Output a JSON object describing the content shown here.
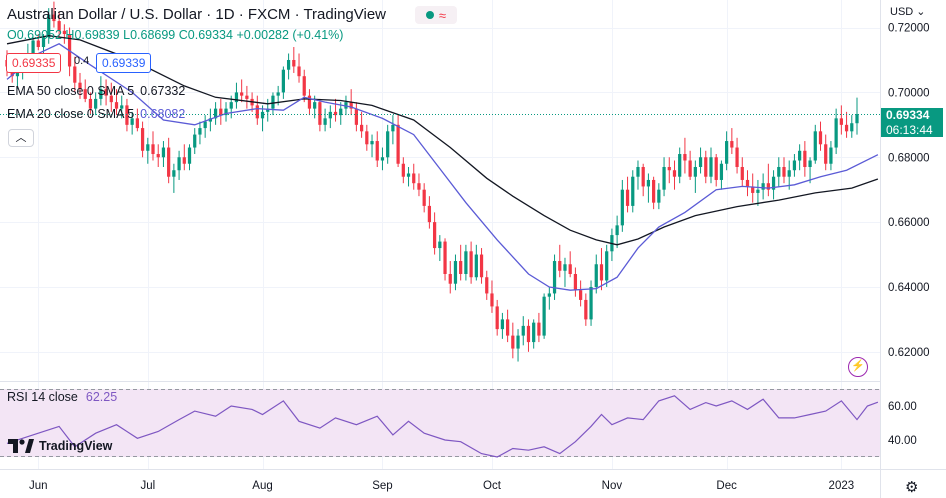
{
  "header": {
    "title": "Australian Dollar / U.S. Dollar · 1D · FXCM · TradingView",
    "ohlc": {
      "open_label": "O",
      "open": "0.69052",
      "high_label": "H",
      "high": "0.69839",
      "low_label": "L",
      "low": "0.68699",
      "close_label": "C",
      "close": "0.69334",
      "change": "+0.00282 (+0.41%)"
    },
    "sell_price": "0.69335",
    "spread": "0.4",
    "buy_price": "0.69339",
    "currency": "USD",
    "collapse_icon": "chevron-up-icon"
  },
  "indicators": [
    {
      "label": "EMA 50 close 0 SMA 5",
      "value": "0.67332",
      "color": "#131722"
    },
    {
      "label": "EMA 20 close 0 SMA 5",
      "value": "0.68082",
      "color": "#5b5bd6"
    }
  ],
  "price_scale": {
    "labels": [
      "0.72000",
      "0.70000",
      "0.68000",
      "0.66000",
      "0.64000",
      "0.62000"
    ],
    "last_price": "0.69334",
    "countdown": "06:13:44"
  },
  "rsi": {
    "label": "RSI 14 close",
    "value": "62.25",
    "labels": [
      "60.00",
      "40.00"
    ]
  },
  "time_axis": [
    "Jun",
    "Jul",
    "Aug",
    "Sep",
    "Oct",
    "Nov",
    "Dec",
    "2023"
  ],
  "brand": {
    "name": "TradingView"
  },
  "colors": {
    "up": "#089981",
    "down": "#f23645",
    "ema50": "#131722",
    "ema20": "#5b5bd6",
    "rsi": "#7e57c2",
    "rsi_band": "#f3e5f5"
  },
  "chart_data": {
    "type": "candlestick",
    "title": "Australian Dollar / U.S. Dollar · 1D · FXCM",
    "y_range": [
      0.611,
      0.7285
    ],
    "x_ticks": [
      {
        "label": "Jun",
        "index": 6
      },
      {
        "label": "Jul",
        "index": 27
      },
      {
        "label": "Aug",
        "index": 49
      },
      {
        "label": "Sep",
        "index": 72
      },
      {
        "label": "Oct",
        "index": 93
      },
      {
        "label": "Nov",
        "index": 116
      },
      {
        "label": "Dec",
        "index": 138
      },
      {
        "label": "2023",
        "index": 160
      }
    ],
    "candles": [
      [
        0.71,
        0.713,
        0.705,
        0.708
      ],
      [
        0.708,
        0.711,
        0.703,
        0.705
      ],
      [
        0.705,
        0.709,
        0.701,
        0.706
      ],
      [
        0.706,
        0.712,
        0.704,
        0.71
      ],
      [
        0.71,
        0.715,
        0.707,
        0.712
      ],
      [
        0.712,
        0.717,
        0.71,
        0.716
      ],
      [
        0.716,
        0.718,
        0.713,
        0.714
      ],
      [
        0.714,
        0.718,
        0.71,
        0.717
      ],
      [
        0.717,
        0.726,
        0.715,
        0.724
      ],
      [
        0.724,
        0.728,
        0.72,
        0.722
      ],
      [
        0.722,
        0.725,
        0.717,
        0.719
      ],
      [
        0.719,
        0.721,
        0.715,
        0.718
      ],
      [
        0.718,
        0.72,
        0.705,
        0.708
      ],
      [
        0.708,
        0.711,
        0.7,
        0.703
      ],
      [
        0.703,
        0.706,
        0.698,
        0.701
      ],
      [
        0.701,
        0.704,
        0.697,
        0.698
      ],
      [
        0.698,
        0.7,
        0.693,
        0.695
      ],
      [
        0.695,
        0.7,
        0.693,
        0.698
      ],
      [
        0.698,
        0.705,
        0.696,
        0.701
      ],
      [
        0.701,
        0.704,
        0.696,
        0.699
      ],
      [
        0.699,
        0.703,
        0.694,
        0.697
      ],
      [
        0.697,
        0.701,
        0.693,
        0.695
      ],
      [
        0.695,
        0.699,
        0.692,
        0.696
      ],
      [
        0.696,
        0.698,
        0.688,
        0.69
      ],
      [
        0.69,
        0.694,
        0.687,
        0.692
      ],
      [
        0.692,
        0.695,
        0.688,
        0.689
      ],
      [
        0.689,
        0.691,
        0.68,
        0.682
      ],
      [
        0.682,
        0.686,
        0.678,
        0.684
      ],
      [
        0.684,
        0.688,
        0.679,
        0.681
      ],
      [
        0.681,
        0.684,
        0.677,
        0.68
      ],
      [
        0.68,
        0.685,
        0.677,
        0.683
      ],
      [
        0.683,
        0.686,
        0.672,
        0.674
      ],
      [
        0.674,
        0.678,
        0.669,
        0.676
      ],
      [
        0.676,
        0.682,
        0.673,
        0.68
      ],
      [
        0.68,
        0.684,
        0.676,
        0.678
      ],
      [
        0.678,
        0.684,
        0.676,
        0.683
      ],
      [
        0.683,
        0.689,
        0.681,
        0.687
      ],
      [
        0.687,
        0.691,
        0.684,
        0.689
      ],
      [
        0.689,
        0.693,
        0.686,
        0.691
      ],
      [
        0.691,
        0.695,
        0.688,
        0.692
      ],
      [
        0.692,
        0.697,
        0.69,
        0.695
      ],
      [
        0.695,
        0.698,
        0.69,
        0.693
      ],
      [
        0.693,
        0.697,
        0.691,
        0.695
      ],
      [
        0.695,
        0.699,
        0.692,
        0.697
      ],
      [
        0.697,
        0.703,
        0.695,
        0.7
      ],
      [
        0.7,
        0.704,
        0.697,
        0.699
      ],
      [
        0.699,
        0.702,
        0.695,
        0.698
      ],
      [
        0.698,
        0.7,
        0.694,
        0.696
      ],
      [
        0.696,
        0.699,
        0.69,
        0.692
      ],
      [
        0.692,
        0.696,
        0.688,
        0.694
      ],
      [
        0.694,
        0.698,
        0.691,
        0.695
      ],
      [
        0.695,
        0.7,
        0.693,
        0.699
      ],
      [
        0.699,
        0.702,
        0.696,
        0.7
      ],
      [
        0.7,
        0.708,
        0.698,
        0.707
      ],
      [
        0.707,
        0.712,
        0.704,
        0.71
      ],
      [
        0.71,
        0.714,
        0.706,
        0.708
      ],
      [
        0.708,
        0.712,
        0.703,
        0.705
      ],
      [
        0.705,
        0.707,
        0.697,
        0.699
      ],
      [
        0.699,
        0.701,
        0.693,
        0.695
      ],
      [
        0.695,
        0.699,
        0.692,
        0.697
      ],
      [
        0.697,
        0.698,
        0.688,
        0.69
      ],
      [
        0.69,
        0.695,
        0.688,
        0.692
      ],
      [
        0.692,
        0.696,
        0.689,
        0.694
      ],
      [
        0.694,
        0.698,
        0.691,
        0.693
      ],
      [
        0.693,
        0.697,
        0.69,
        0.695
      ],
      [
        0.695,
        0.699,
        0.693,
        0.697
      ],
      [
        0.697,
        0.701,
        0.693,
        0.695
      ],
      [
        0.695,
        0.697,
        0.688,
        0.69
      ],
      [
        0.69,
        0.694,
        0.686,
        0.688
      ],
      [
        0.688,
        0.69,
        0.682,
        0.684
      ],
      [
        0.684,
        0.687,
        0.68,
        0.685
      ],
      [
        0.685,
        0.688,
        0.677,
        0.679
      ],
      [
        0.679,
        0.683,
        0.676,
        0.68
      ],
      [
        0.68,
        0.69,
        0.678,
        0.688
      ],
      [
        0.688,
        0.693,
        0.684,
        0.69
      ],
      [
        0.69,
        0.693,
        0.677,
        0.678
      ],
      [
        0.678,
        0.68,
        0.672,
        0.674
      ],
      [
        0.674,
        0.677,
        0.671,
        0.675
      ],
      [
        0.675,
        0.678,
        0.67,
        0.672
      ],
      [
        0.672,
        0.675,
        0.668,
        0.67
      ],
      [
        0.67,
        0.672,
        0.663,
        0.665
      ],
      [
        0.665,
        0.668,
        0.658,
        0.66
      ],
      [
        0.66,
        0.663,
        0.65,
        0.652
      ],
      [
        0.652,
        0.656,
        0.648,
        0.654
      ],
      [
        0.654,
        0.655,
        0.642,
        0.644
      ],
      [
        0.644,
        0.648,
        0.638,
        0.641
      ],
      [
        0.641,
        0.65,
        0.639,
        0.648
      ],
      [
        0.648,
        0.653,
        0.642,
        0.644
      ],
      [
        0.644,
        0.653,
        0.642,
        0.651
      ],
      [
        0.651,
        0.654,
        0.641,
        0.643
      ],
      [
        0.643,
        0.653,
        0.642,
        0.65
      ],
      [
        0.65,
        0.652,
        0.641,
        0.643
      ],
      [
        0.643,
        0.645,
        0.636,
        0.638
      ],
      [
        0.638,
        0.642,
        0.632,
        0.634
      ],
      [
        0.634,
        0.636,
        0.625,
        0.627
      ],
      [
        0.627,
        0.632,
        0.624,
        0.63
      ],
      [
        0.63,
        0.633,
        0.623,
        0.625
      ],
      [
        0.625,
        0.629,
        0.618,
        0.621
      ],
      [
        0.621,
        0.627,
        0.617,
        0.625
      ],
      [
        0.625,
        0.631,
        0.622,
        0.628
      ],
      [
        0.628,
        0.63,
        0.62,
        0.623
      ],
      [
        0.623,
        0.63,
        0.621,
        0.629
      ],
      [
        0.629,
        0.632,
        0.623,
        0.625
      ],
      [
        0.625,
        0.638,
        0.624,
        0.637
      ],
      [
        0.637,
        0.64,
        0.633,
        0.638
      ],
      [
        0.638,
        0.65,
        0.636,
        0.648
      ],
      [
        0.648,
        0.653,
        0.643,
        0.645
      ],
      [
        0.645,
        0.649,
        0.64,
        0.647
      ],
      [
        0.647,
        0.651,
        0.643,
        0.644
      ],
      [
        0.644,
        0.646,
        0.637,
        0.639
      ],
      [
        0.639,
        0.642,
        0.634,
        0.636
      ],
      [
        0.636,
        0.638,
        0.628,
        0.63
      ],
      [
        0.63,
        0.642,
        0.628,
        0.64
      ],
      [
        0.64,
        0.65,
        0.638,
        0.647
      ],
      [
        0.647,
        0.652,
        0.639,
        0.642
      ],
      [
        0.642,
        0.653,
        0.64,
        0.651
      ],
      [
        0.651,
        0.658,
        0.648,
        0.656
      ],
      [
        0.656,
        0.662,
        0.652,
        0.659
      ],
      [
        0.659,
        0.673,
        0.657,
        0.67
      ],
      [
        0.67,
        0.674,
        0.663,
        0.665
      ],
      [
        0.665,
        0.676,
        0.663,
        0.674
      ],
      [
        0.674,
        0.679,
        0.67,
        0.677
      ],
      [
        0.677,
        0.678,
        0.668,
        0.671
      ],
      [
        0.671,
        0.675,
        0.666,
        0.673
      ],
      [
        0.673,
        0.674,
        0.664,
        0.666
      ],
      [
        0.666,
        0.672,
        0.664,
        0.67
      ],
      [
        0.67,
        0.68,
        0.668,
        0.677
      ],
      [
        0.677,
        0.68,
        0.672,
        0.676
      ],
      [
        0.676,
        0.679,
        0.67,
        0.674
      ],
      [
        0.674,
        0.683,
        0.672,
        0.681
      ],
      [
        0.681,
        0.686,
        0.675,
        0.679
      ],
      [
        0.679,
        0.682,
        0.673,
        0.674
      ],
      [
        0.674,
        0.679,
        0.669,
        0.677
      ],
      [
        0.677,
        0.683,
        0.675,
        0.68
      ],
      [
        0.68,
        0.682,
        0.672,
        0.674
      ],
      [
        0.674,
        0.683,
        0.672,
        0.68
      ],
      [
        0.68,
        0.681,
        0.671,
        0.673
      ],
      [
        0.673,
        0.679,
        0.67,
        0.678
      ],
      [
        0.678,
        0.688,
        0.676,
        0.685
      ],
      [
        0.685,
        0.689,
        0.681,
        0.683
      ],
      [
        0.683,
        0.686,
        0.675,
        0.677
      ],
      [
        0.677,
        0.68,
        0.671,
        0.673
      ],
      [
        0.673,
        0.676,
        0.668,
        0.671
      ],
      [
        0.671,
        0.675,
        0.666,
        0.669
      ],
      [
        0.669,
        0.673,
        0.665,
        0.67
      ],
      [
        0.67,
        0.675,
        0.667,
        0.672
      ],
      [
        0.672,
        0.678,
        0.668,
        0.67
      ],
      [
        0.67,
        0.676,
        0.667,
        0.674
      ],
      [
        0.674,
        0.68,
        0.671,
        0.677
      ],
      [
        0.677,
        0.68,
        0.672,
        0.674
      ],
      [
        0.674,
        0.679,
        0.67,
        0.676
      ],
      [
        0.676,
        0.681,
        0.674,
        0.679
      ],
      [
        0.679,
        0.684,
        0.676,
        0.682
      ],
      [
        0.682,
        0.685,
        0.674,
        0.677
      ],
      [
        0.677,
        0.68,
        0.672,
        0.679
      ],
      [
        0.679,
        0.69,
        0.678,
        0.688
      ],
      [
        0.688,
        0.691,
        0.682,
        0.684
      ],
      [
        0.684,
        0.687,
        0.676,
        0.678
      ],
      [
        0.678,
        0.685,
        0.676,
        0.683
      ],
      [
        0.683,
        0.695,
        0.681,
        0.692
      ],
      [
        0.692,
        0.696,
        0.687,
        0.69
      ],
      [
        0.69,
        0.694,
        0.686,
        0.688
      ],
      [
        0.688,
        0.693,
        0.686,
        0.6905
      ],
      [
        0.6905,
        0.6984,
        0.687,
        0.6933
      ]
    ],
    "ema50": [
      [
        0,
        0.715
      ],
      [
        8,
        0.7175
      ],
      [
        14,
        0.7162
      ],
      [
        24,
        0.71
      ],
      [
        34,
        0.702
      ],
      [
        40,
        0.6985
      ],
      [
        50,
        0.6965
      ],
      [
        57,
        0.698
      ],
      [
        64,
        0.6975
      ],
      [
        70,
        0.696
      ],
      [
        78,
        0.6915
      ],
      [
        85,
        0.683
      ],
      [
        92,
        0.6735
      ],
      [
        97,
        0.668
      ],
      [
        103,
        0.662
      ],
      [
        108,
        0.6575
      ],
      [
        113,
        0.6545
      ],
      [
        117,
        0.653
      ],
      [
        121,
        0.6548
      ],
      [
        126,
        0.6585
      ],
      [
        132,
        0.662
      ],
      [
        140,
        0.6648
      ],
      [
        148,
        0.6668
      ],
      [
        155,
        0.669
      ],
      [
        162,
        0.6705
      ],
      [
        167,
        0.6733
      ]
    ],
    "ema20": [
      [
        0,
        0.704
      ],
      [
        6,
        0.712
      ],
      [
        10,
        0.715
      ],
      [
        16,
        0.7085
      ],
      [
        24,
        0.7
      ],
      [
        30,
        0.6915
      ],
      [
        36,
        0.69
      ],
      [
        42,
        0.6935
      ],
      [
        48,
        0.695
      ],
      [
        53,
        0.6945
      ],
      [
        57,
        0.6985
      ],
      [
        61,
        0.697
      ],
      [
        66,
        0.6955
      ],
      [
        72,
        0.692
      ],
      [
        78,
        0.687
      ],
      [
        83,
        0.6765
      ],
      [
        88,
        0.666
      ],
      [
        94,
        0.6545
      ],
      [
        100,
        0.644
      ],
      [
        104,
        0.64
      ],
      [
        108,
        0.639
      ],
      [
        113,
        0.6395
      ],
      [
        117,
        0.643
      ],
      [
        121,
        0.652
      ],
      [
        125,
        0.6585
      ],
      [
        130,
        0.663
      ],
      [
        136,
        0.67
      ],
      [
        141,
        0.671
      ],
      [
        146,
        0.6705
      ],
      [
        151,
        0.6715
      ],
      [
        156,
        0.674
      ],
      [
        161,
        0.676
      ],
      [
        167,
        0.6808
      ]
    ],
    "rsi": [
      [
        0,
        38
      ],
      [
        3,
        41
      ],
      [
        6,
        44
      ],
      [
        10,
        48
      ],
      [
        13,
        36
      ],
      [
        17,
        44
      ],
      [
        21,
        49
      ],
      [
        25,
        41
      ],
      [
        29,
        45
      ],
      [
        33,
        52
      ],
      [
        36,
        57
      ],
      [
        40,
        54
      ],
      [
        43,
        60
      ],
      [
        47,
        58
      ],
      [
        49,
        55
      ],
      [
        53,
        63
      ],
      [
        56,
        51
      ],
      [
        60,
        47
      ],
      [
        63,
        53
      ],
      [
        67,
        49
      ],
      [
        71,
        54
      ],
      [
        74,
        43
      ],
      [
        77,
        51
      ],
      [
        80,
        44
      ],
      [
        84,
        40
      ],
      [
        87,
        39
      ],
      [
        91,
        32
      ],
      [
        94,
        30
      ],
      [
        97,
        35
      ],
      [
        100,
        34
      ],
      [
        103,
        36
      ],
      [
        106,
        32
      ],
      [
        109,
        39
      ],
      [
        112,
        48
      ],
      [
        114,
        55
      ],
      [
        116,
        49
      ],
      [
        119,
        53
      ],
      [
        122,
        52
      ],
      [
        125,
        63
      ],
      [
        128,
        66
      ],
      [
        131,
        58
      ],
      [
        134,
        62
      ],
      [
        136,
        60
      ],
      [
        139,
        63
      ],
      [
        142,
        58
      ],
      [
        145,
        64
      ],
      [
        148,
        53
      ],
      [
        151,
        53
      ],
      [
        154,
        55
      ],
      [
        157,
        57
      ],
      [
        160,
        63
      ],
      [
        163,
        52
      ],
      [
        165,
        60
      ],
      [
        167,
        62.25
      ]
    ]
  }
}
